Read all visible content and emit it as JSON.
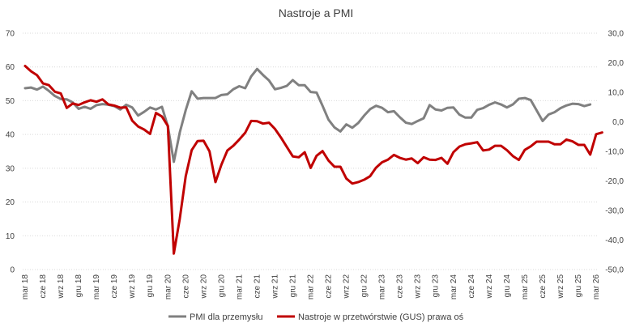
{
  "chart_data": {
    "type": "line",
    "title": "Nastroje a PMI",
    "xlabel": "",
    "ylabel": "",
    "ylim_left": [
      0,
      70
    ],
    "yticks_left": [
      "0",
      "10",
      "20",
      "30",
      "40",
      "50",
      "60",
      "70"
    ],
    "ylim_right": [
      -50,
      30
    ],
    "yticks_right": [
      "-50,0",
      "-40,0",
      "-30,0",
      "-20,0",
      "-10,0",
      "0,0",
      "10,0",
      "20,0",
      "30,0"
    ],
    "x_start": "2018-03",
    "x_tick_labels": [
      "mar 18",
      "cze 18",
      "wrz 18",
      "gru 18",
      "mar 19",
      "cze 19",
      "wrz 19",
      "gru 19",
      "mar 20",
      "cze 20",
      "wrz 20",
      "gru 20",
      "mar 21",
      "cze 21",
      "wrz 21",
      "gru 21",
      "mar 22",
      "cze 22",
      "wrz 22",
      "gru 22",
      "mar 23",
      "cze 23",
      "wrz 23",
      "gru 23",
      "mar 24",
      "cze 24",
      "wrz 24",
      "gru 24",
      "mar 25",
      "cze 25",
      "wrz 25",
      "gru 25",
      "mar 26"
    ],
    "grid": true,
    "legend_position": "bottom",
    "series": [
      {
        "name": "PMI dla przemysłu",
        "axis": "left",
        "color": "#808080",
        "values": [
          53.7,
          53.9,
          53.3,
          54.2,
          52.9,
          51.4,
          50.5,
          50.4,
          49.5,
          47.6,
          48.2,
          47.6,
          48.7,
          49.0,
          48.8,
          48.4,
          47.4,
          48.8,
          48.0,
          45.6,
          46.7,
          48.0,
          47.4,
          48.2,
          42.4,
          31.9,
          40.6,
          47.2,
          52.8,
          50.6,
          50.8,
          50.8,
          50.8,
          51.7,
          51.9,
          53.4,
          54.3,
          53.7,
          57.2,
          59.4,
          57.6,
          56.0,
          53.4,
          53.8,
          54.4,
          56.1,
          54.6,
          54.6,
          52.6,
          52.4,
          48.5,
          44.4,
          42.1,
          40.9,
          43.0,
          42.0,
          43.4,
          45.6,
          47.5,
          48.5,
          47.9,
          46.6,
          46.9,
          45.1,
          43.5,
          43.1,
          44.0,
          44.8,
          48.7,
          47.4,
          47.1,
          47.9,
          48.0,
          45.9,
          45.0,
          45.0,
          47.3,
          47.8,
          48.8,
          49.5,
          48.9,
          48.0,
          48.9,
          50.6,
          50.8,
          50.2,
          47.1,
          44.0,
          45.9,
          46.6,
          47.8,
          48.6,
          49.1,
          49.0,
          48.4,
          48.9
        ]
      },
      {
        "name": "Nastroje w przetwórstwie (GUS) prawa oś",
        "axis": "right",
        "color": "#c00000",
        "values": [
          18.9,
          17.1,
          15.8,
          13.0,
          12.4,
          10.2,
          9.6,
          4.7,
          6.2,
          5.7,
          6.6,
          7.3,
          6.8,
          7.6,
          5.9,
          5.5,
          4.8,
          4.9,
          0.4,
          -1.6,
          -2.6,
          -4.1,
          3.0,
          1.8,
          -1.4,
          -44.6,
          -32.8,
          -18.4,
          -9.6,
          -6.5,
          -6.4,
          -10.0,
          -20.4,
          -14.5,
          -9.7,
          -8.1,
          -6.0,
          -3.7,
          0.3,
          0.2,
          -0.6,
          -0.3,
          -2.4,
          -5.3,
          -8.5,
          -11.7,
          -12.0,
          -10.3,
          -15.6,
          -11.5,
          -9.9,
          -13.1,
          -15.2,
          -15.2,
          -19.2,
          -20.9,
          -20.4,
          -19.6,
          -18.4,
          -15.5,
          -13.7,
          -12.8,
          -11.2,
          -12.2,
          -12.8,
          -12.4,
          -14.0,
          -12.0,
          -12.8,
          -12.9,
          -12.2,
          -14.2,
          -10.3,
          -8.4,
          -7.6,
          -7.3,
          -6.9,
          -9.7,
          -9.4,
          -8.1,
          -8.1,
          -9.6,
          -11.6,
          -12.9,
          -9.5,
          -8.3,
          -6.7,
          -6.7,
          -6.7,
          -7.6,
          -7.6,
          -6.0,
          -6.6,
          -7.8,
          -7.8,
          -11.1,
          -4.2,
          -3.6
        ]
      }
    ]
  }
}
